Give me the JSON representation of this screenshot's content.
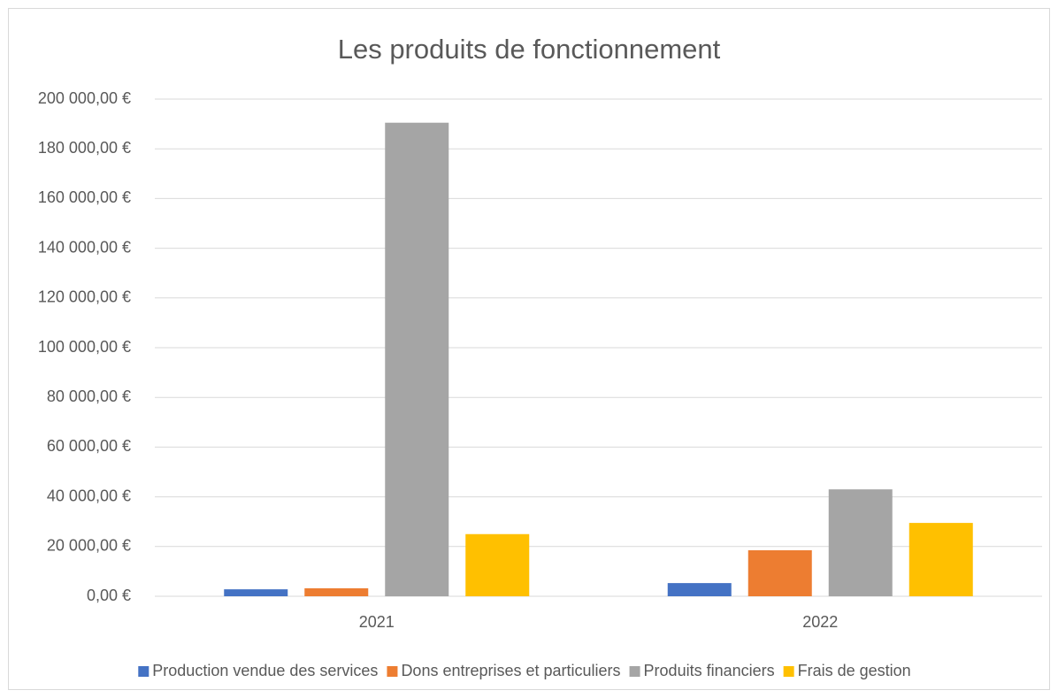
{
  "chart_data": {
    "type": "bar",
    "title": "Les produits de fonctionnement",
    "categories": [
      "2021",
      "2022"
    ],
    "series": [
      {
        "name": "Production vendue des services",
        "color": "#4472c4",
        "values": [
          2800,
          5300
        ]
      },
      {
        "name": "Dons entreprises et particuliers",
        "color": "#ed7d31",
        "values": [
          3200,
          18500
        ]
      },
      {
        "name": "Produits financiers",
        "color": "#a5a5a5",
        "values": [
          190500,
          43000
        ]
      },
      {
        "name": "Frais de gestion",
        "color": "#ffc000",
        "values": [
          25000,
          29500
        ]
      }
    ],
    "ylim": [
      0,
      200000
    ],
    "yticks": [
      {
        "value": 0,
        "label": "0,00 €"
      },
      {
        "value": 20000,
        "label": "20 000,00 €"
      },
      {
        "value": 40000,
        "label": "40 000,00 €"
      },
      {
        "value": 60000,
        "label": "60 000,00 €"
      },
      {
        "value": 80000,
        "label": "80 000,00 €"
      },
      {
        "value": 100000,
        "label": "100 000,00 €"
      },
      {
        "value": 120000,
        "label": "120 000,00 €"
      },
      {
        "value": 140000,
        "label": "140 000,00 €"
      },
      {
        "value": 160000,
        "label": "160 000,00 €"
      },
      {
        "value": 180000,
        "label": "180 000,00 €"
      },
      {
        "value": 200000,
        "label": "200 000,00 €"
      }
    ],
    "grid": true,
    "legend": "bottom"
  }
}
